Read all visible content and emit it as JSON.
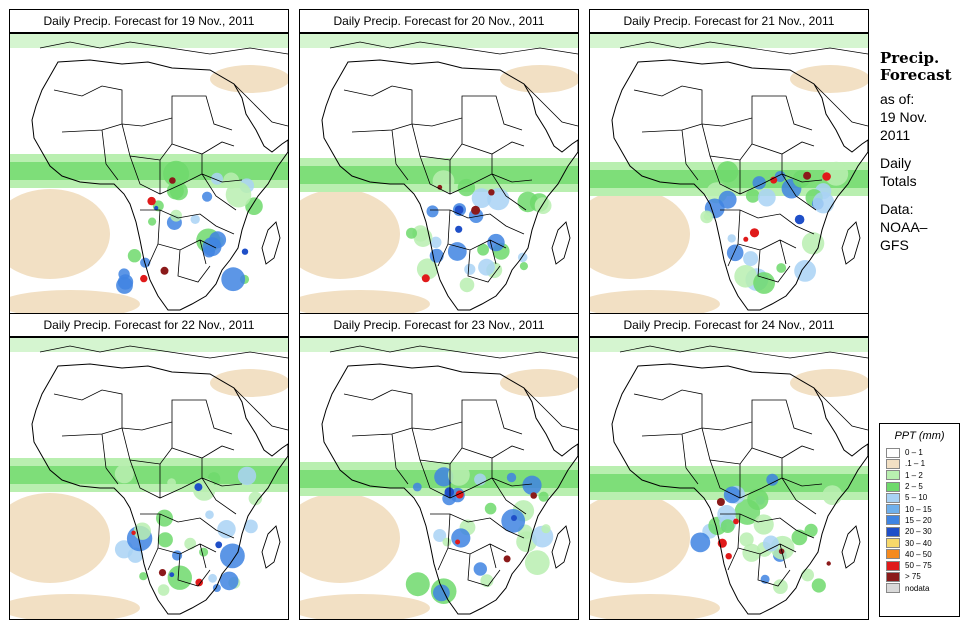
{
  "panels": [
    {
      "title": "Daily Precip. Forecast for  19 Nov., 2011"
    },
    {
      "title": "Daily Precip. Forecast for  20 Nov., 2011"
    },
    {
      "title": "Daily Precip. Forecast for  21 Nov., 2011"
    },
    {
      "title": "Daily Precip. Forecast for  22 Nov., 2011"
    },
    {
      "title": "Daily Precip. Forecast for  23 Nov., 2011"
    },
    {
      "title": "Daily Precip. Forecast for  24 Nov., 2011"
    }
  ],
  "side": {
    "heading1": "Precip.",
    "heading2": "Forecast",
    "asof_label": "as of:",
    "date1": "19 Nov.",
    "date2": "2011",
    "totals1": "Daily",
    "totals2": "Totals",
    "data1": "Data:",
    "data2": "NOAA–",
    "data3": "GFS"
  },
  "legend": {
    "title": "PPT (mm)",
    "items": [
      {
        "label": "0 – 1",
        "color": "#ffffff"
      },
      {
        "label": ".1 – 1",
        "color": "#f2e0c4"
      },
      {
        "label": "1 – 2",
        "color": "#b9efb0"
      },
      {
        "label": "2 – 5",
        "color": "#6fd96c"
      },
      {
        "label": "5 – 10",
        "color": "#a9d2f4"
      },
      {
        "label": "10 – 15",
        "color": "#6fb0ec"
      },
      {
        "label": "15 – 20",
        "color": "#3f84e2"
      },
      {
        "label": "20 – 30",
        "color": "#1f4fc8"
      },
      {
        "label": "30 – 40",
        "color": "#f7d86a"
      },
      {
        "label": "40 – 50",
        "color": "#f58a1e"
      },
      {
        "label": "50 – 75",
        "color": "#e01a1a"
      },
      {
        "label": "> 75",
        "color": "#8b1a1a"
      },
      {
        "label": "nodata",
        "color": "#d9d9d9"
      }
    ]
  },
  "colors": {
    "dry": "#f2e0c4",
    "light_green": "#b9efb0",
    "green": "#6fd96c",
    "light_blue": "#a9d2f4",
    "blue": "#3f84e2",
    "dark_blue": "#1f4fc8",
    "red": "#e01a1a",
    "dark_red": "#8b1a1a"
  }
}
